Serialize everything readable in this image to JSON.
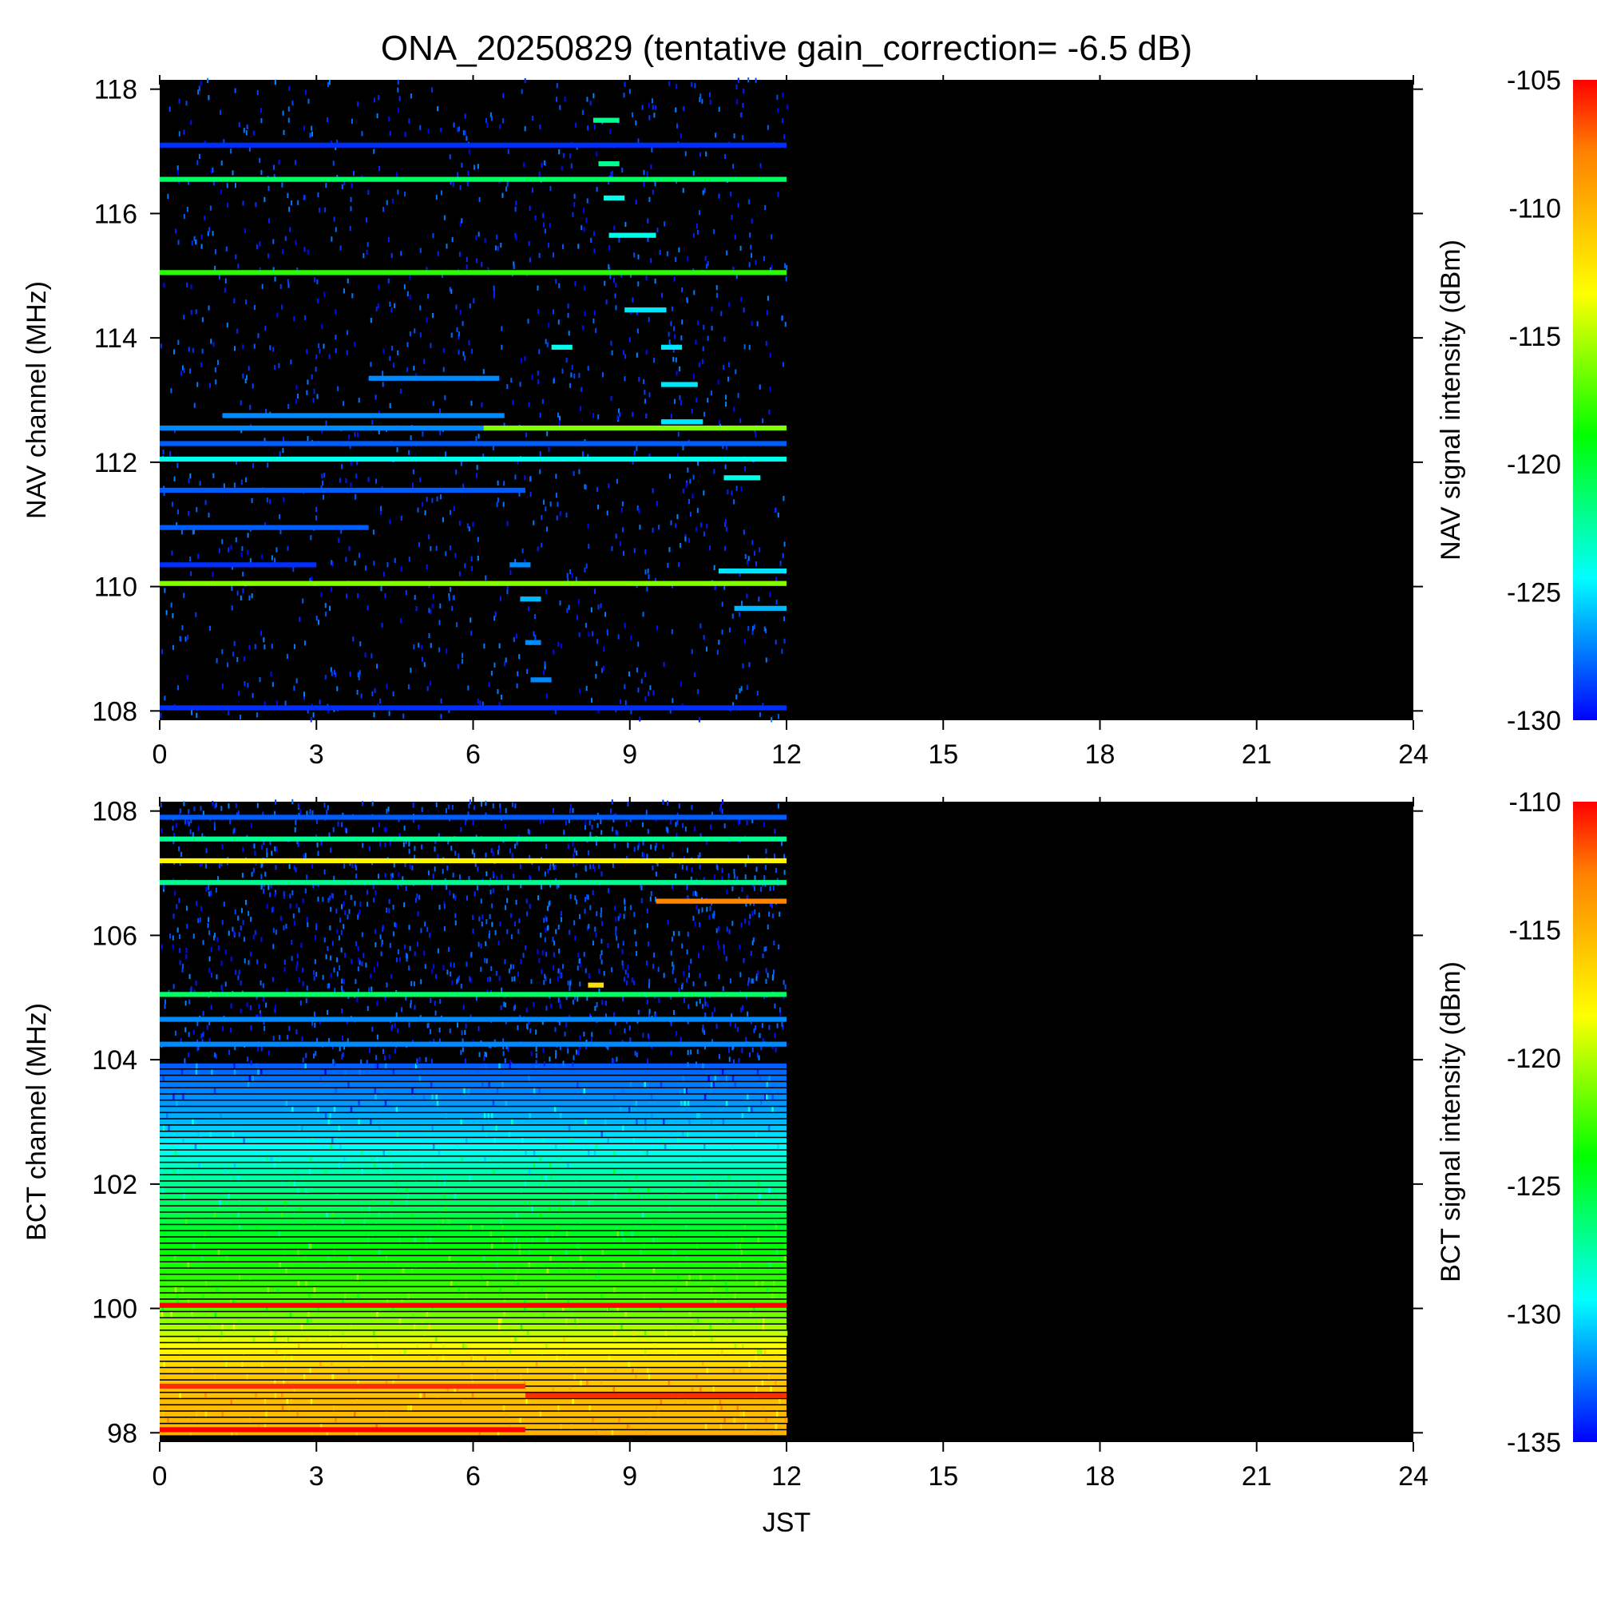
{
  "title": "ONA_20250829 (tentative gain_correction= -6.5 dB)",
  "colormap": [
    "#0000ff",
    "#0080ff",
    "#00ffff",
    "#00ff80",
    "#00ff00",
    "#80ff00",
    "#ffff00",
    "#ffc000",
    "#ff8000",
    "#ff0000"
  ],
  "background_color": "#000000",
  "chart_data": [
    {
      "type": "heatmap",
      "name": "NAV",
      "ylabel": "NAV channel (MHz)",
      "xlabel": "",
      "xlim": [
        0,
        24
      ],
      "ylim": [
        107.85,
        118.15
      ],
      "xticks": [
        "0",
        "3",
        "6",
        "9",
        "12",
        "15",
        "18",
        "21",
        "24"
      ],
      "yticks": [
        "108",
        "110",
        "112",
        "114",
        "116",
        "118"
      ],
      "colorbar_label": "NAV signal intensity (dBm)",
      "colorbar_range": [
        -130,
        -105
      ],
      "colorbar_ticks": [
        "-105",
        "-110",
        "-115",
        "-120",
        "-125",
        "-130"
      ],
      "data_time_range": [
        0,
        12
      ],
      "noise_level": -130,
      "bands": [
        {
          "freq": 110.05,
          "x": [
            0,
            12
          ],
          "value": -116
        },
        {
          "freq": 112.55,
          "x": [
            6.2,
            12
          ],
          "value": -116
        },
        {
          "freq": 112.55,
          "x": [
            0,
            6.2
          ],
          "value": -127
        },
        {
          "freq": 115.05,
          "x": [
            0,
            12
          ],
          "value": -118
        },
        {
          "freq": 116.55,
          "x": [
            0,
            12
          ],
          "value": -121
        },
        {
          "freq": 112.05,
          "x": [
            0,
            12
          ],
          "value": -124
        },
        {
          "freq": 112.3,
          "x": [
            0,
            12
          ],
          "value": -128
        },
        {
          "freq": 117.1,
          "x": [
            0,
            12
          ],
          "value": -129
        },
        {
          "freq": 111.55,
          "x": [
            0,
            7
          ],
          "value": -128
        },
        {
          "freq": 110.95,
          "x": [
            0,
            4
          ],
          "value": -128
        },
        {
          "freq": 110.35,
          "x": [
            0,
            3
          ],
          "value": -129
        },
        {
          "freq": 108.05,
          "x": [
            0,
            12
          ],
          "value": -129
        },
        {
          "freq": 112.75,
          "x": [
            1.2,
            6.6
          ],
          "value": -127
        },
        {
          "freq": 113.35,
          "x": [
            4,
            6.5
          ],
          "value": -127
        },
        {
          "freq": 117.5,
          "x": [
            8.3,
            8.8
          ],
          "value": -122
        },
        {
          "freq": 116.8,
          "x": [
            8.4,
            8.8
          ],
          "value": -122
        },
        {
          "freq": 116.25,
          "x": [
            8.5,
            8.9
          ],
          "value": -124
        },
        {
          "freq": 115.65,
          "x": [
            8.6,
            9.5
          ],
          "value": -124
        },
        {
          "freq": 114.45,
          "x": [
            8.9,
            9.7
          ],
          "value": -125
        },
        {
          "freq": 113.85,
          "x": [
            7.5,
            7.9
          ],
          "value": -124
        },
        {
          "freq": 113.85,
          "x": [
            9.6,
            10
          ],
          "value": -125
        },
        {
          "freq": 113.25,
          "x": [
            9.6,
            10.3
          ],
          "value": -125
        },
        {
          "freq": 112.65,
          "x": [
            9.6,
            10.4
          ],
          "value": -125
        },
        {
          "freq": 111.75,
          "x": [
            10.8,
            11.5
          ],
          "value": -124
        },
        {
          "freq": 110.25,
          "x": [
            10.7,
            12
          ],
          "value": -125
        },
        {
          "freq": 109.65,
          "x": [
            11,
            12
          ],
          "value": -126
        },
        {
          "freq": 109.8,
          "x": [
            6.9,
            7.3
          ],
          "value": -126
        },
        {
          "freq": 109.1,
          "x": [
            7,
            7.3
          ],
          "value": -127
        },
        {
          "freq": 108.5,
          "x": [
            7.1,
            7.5
          ],
          "value": -127
        },
        {
          "freq": 110.35,
          "x": [
            6.7,
            7.1
          ],
          "value": -127
        }
      ]
    },
    {
      "type": "heatmap",
      "name": "BCT",
      "ylabel": "BCT channel (MHz)",
      "xlabel": "JST",
      "xlim": [
        0,
        24
      ],
      "ylim": [
        97.85,
        108.15
      ],
      "xticks": [
        "0",
        "3",
        "6",
        "9",
        "12",
        "15",
        "18",
        "21",
        "24"
      ],
      "yticks": [
        "98",
        "100",
        "102",
        "104",
        "106",
        "108"
      ],
      "colorbar_label": "BCT signal intensity (dBm)",
      "colorbar_range": [
        -135,
        -110
      ],
      "colorbar_ticks": [
        "-110",
        "-115",
        "-120",
        "-125",
        "-130",
        "-135"
      ],
      "data_time_range": [
        0,
        12
      ],
      "noise_level": -135,
      "continuum_profile": [
        {
          "freq": 98.0,
          "value": -115
        },
        {
          "freq": 99.0,
          "value": -116
        },
        {
          "freq": 100.0,
          "value": -122
        },
        {
          "freq": 101.0,
          "value": -124
        },
        {
          "freq": 102.0,
          "value": -127
        },
        {
          "freq": 103.0,
          "value": -131
        },
        {
          "freq": 103.9,
          "value": -133
        }
      ],
      "bands": [
        {
          "freq": 98.05,
          "x": [
            0,
            7
          ],
          "value": -110
        },
        {
          "freq": 98.75,
          "x": [
            0,
            7
          ],
          "value": -111
        },
        {
          "freq": 98.6,
          "x": [
            7,
            12
          ],
          "value": -111
        },
        {
          "freq": 100.05,
          "x": [
            0,
            12
          ],
          "value": -110
        },
        {
          "freq": 104.25,
          "x": [
            0,
            12
          ],
          "value": -132
        },
        {
          "freq": 104.65,
          "x": [
            0,
            12
          ],
          "value": -132
        },
        {
          "freq": 105.05,
          "x": [
            0,
            12
          ],
          "value": -126
        },
        {
          "freq": 106.55,
          "x": [
            9.5,
            12
          ],
          "value": -113
        },
        {
          "freq": 106.85,
          "x": [
            0,
            12
          ],
          "value": -127
        },
        {
          "freq": 107.2,
          "x": [
            0,
            12
          ],
          "value": -118
        },
        {
          "freq": 107.55,
          "x": [
            0,
            12
          ],
          "value": -127
        },
        {
          "freq": 107.9,
          "x": [
            0,
            12
          ],
          "value": -133
        },
        {
          "freq": 105.2,
          "x": [
            8.2,
            8.5
          ],
          "value": -117
        }
      ]
    }
  ]
}
